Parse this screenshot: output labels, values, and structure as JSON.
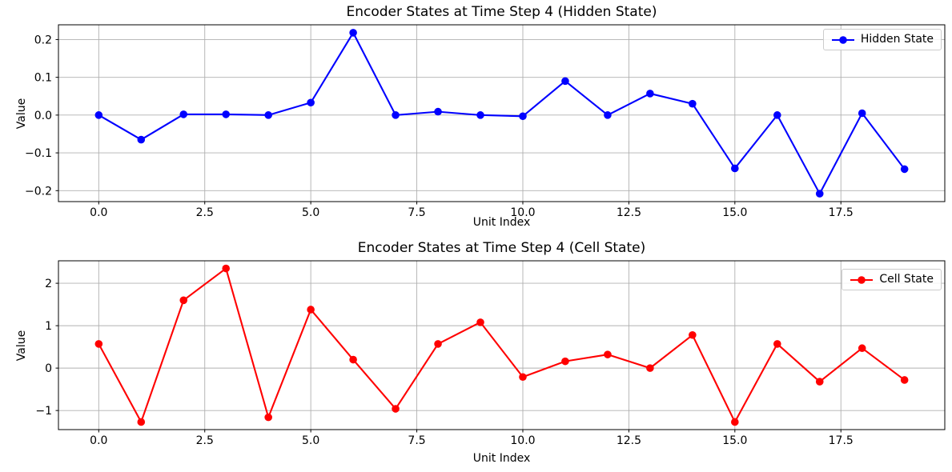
{
  "figure": {
    "background": "#ffffff",
    "grid_color": "#b0b0b0",
    "axis_color": "#000000"
  },
  "chart_data": [
    {
      "type": "line",
      "title": "Encoder States at Time Step 4 (Hidden State)",
      "xlabel": "Unit Index",
      "ylabel": "Value",
      "legend_label": "Hidden State",
      "legend_position": "upper right",
      "color": "#0000ff",
      "grid": true,
      "x": [
        0,
        1,
        2,
        3,
        4,
        5,
        6,
        7,
        8,
        9,
        10,
        11,
        12,
        13,
        14,
        15,
        16,
        17,
        18,
        19
      ],
      "values": [
        0.0,
        -0.065,
        0.002,
        0.002,
        0.0,
        0.033,
        0.218,
        0.0,
        0.009,
        0.0,
        -0.003,
        0.09,
        0.0,
        0.057,
        0.03,
        -0.141,
        0.0,
        -0.208,
        0.005,
        -0.143
      ],
      "xlim": [
        -0.95,
        19.95
      ],
      "ylim": [
        -0.229,
        0.239
      ],
      "xticks": {
        "values": [
          0,
          2.5,
          5,
          7.5,
          10,
          12.5,
          15,
          17.5
        ],
        "labels": [
          "0.0",
          "2.5",
          "5.0",
          "7.5",
          "10.0",
          "12.5",
          "15.0",
          "17.5"
        ]
      },
      "yticks": {
        "values": [
          -0.2,
          -0.1,
          0,
          0.1,
          0.2
        ],
        "labels": [
          "−0.2",
          "−0.1",
          "0.0",
          "0.1",
          "0.2"
        ]
      }
    },
    {
      "type": "line",
      "title": "Encoder States at Time Step 4 (Cell State)",
      "xlabel": "Unit Index",
      "ylabel": "Value",
      "legend_label": "Cell State",
      "legend_position": "upper right",
      "color": "#ff0000",
      "grid": true,
      "x": [
        0,
        1,
        2,
        3,
        4,
        5,
        6,
        7,
        8,
        9,
        10,
        11,
        12,
        13,
        14,
        15,
        16,
        17,
        18,
        19
      ],
      "values": [
        0.57,
        -1.27,
        1.6,
        2.35,
        -1.16,
        1.38,
        0.2,
        -0.96,
        0.57,
        1.08,
        -0.21,
        0.16,
        0.32,
        0.0,
        0.78,
        -1.27,
        0.57,
        -0.32,
        0.47,
        -0.28
      ],
      "xlim": [
        -0.95,
        19.95
      ],
      "ylim": [
        -1.45,
        2.53
      ],
      "xticks": {
        "values": [
          0,
          2.5,
          5,
          7.5,
          10,
          12.5,
          15,
          17.5
        ],
        "labels": [
          "0.0",
          "2.5",
          "5.0",
          "7.5",
          "10.0",
          "12.5",
          "15.0",
          "17.5"
        ]
      },
      "yticks": {
        "values": [
          -1,
          0,
          1,
          2
        ],
        "labels": [
          "−1",
          "0",
          "1",
          "2"
        ]
      }
    }
  ]
}
